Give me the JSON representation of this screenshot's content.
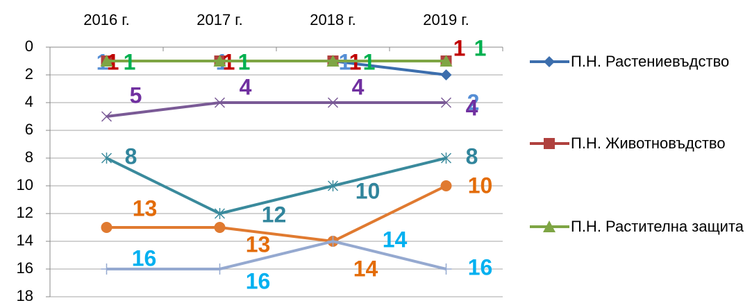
{
  "chart_data": {
    "type": "line",
    "categories": [
      "2016 г.",
      "2017 г.",
      "2018 г.",
      "2019 г."
    ],
    "ylim": [
      0,
      18
    ],
    "yticks": [
      0,
      2,
      4,
      6,
      8,
      10,
      12,
      14,
      16,
      18
    ],
    "y_inverted": true,
    "grid": true,
    "legend": "right",
    "series": [
      {
        "name": "П.Н. Растениевъдство",
        "color": "#3c6ead",
        "label_color": "#558ed5",
        "marker": "diamond",
        "values": [
          1,
          1,
          1,
          2
        ]
      },
      {
        "name": "П.Н. Животновъдство",
        "color": "#b0413e",
        "label_color": "#c00000",
        "marker": "square",
        "values": [
          1,
          1,
          1,
          1
        ]
      },
      {
        "name": "П.Н. Растителна защита",
        "color": "#7ea544",
        "label_color": "#00b050",
        "marker": "triangle",
        "values": [
          1,
          1,
          1,
          1
        ]
      },
      {
        "color": "#7a5a96",
        "label_color": "#7030a0",
        "marker": "x",
        "values": [
          5,
          4,
          4,
          4
        ]
      },
      {
        "color": "#3a8a9c",
        "label_color": "#31859c",
        "marker": "star",
        "values": [
          8,
          12,
          10,
          8
        ]
      },
      {
        "color": "#e07a30",
        "label_color": "#e36c09",
        "marker": "circle",
        "values": [
          13,
          13,
          14,
          10
        ]
      },
      {
        "color": "#95a9d0",
        "label_color": "#00b0f0",
        "marker": "plus",
        "values": [
          16,
          16,
          14,
          16
        ]
      }
    ]
  }
}
